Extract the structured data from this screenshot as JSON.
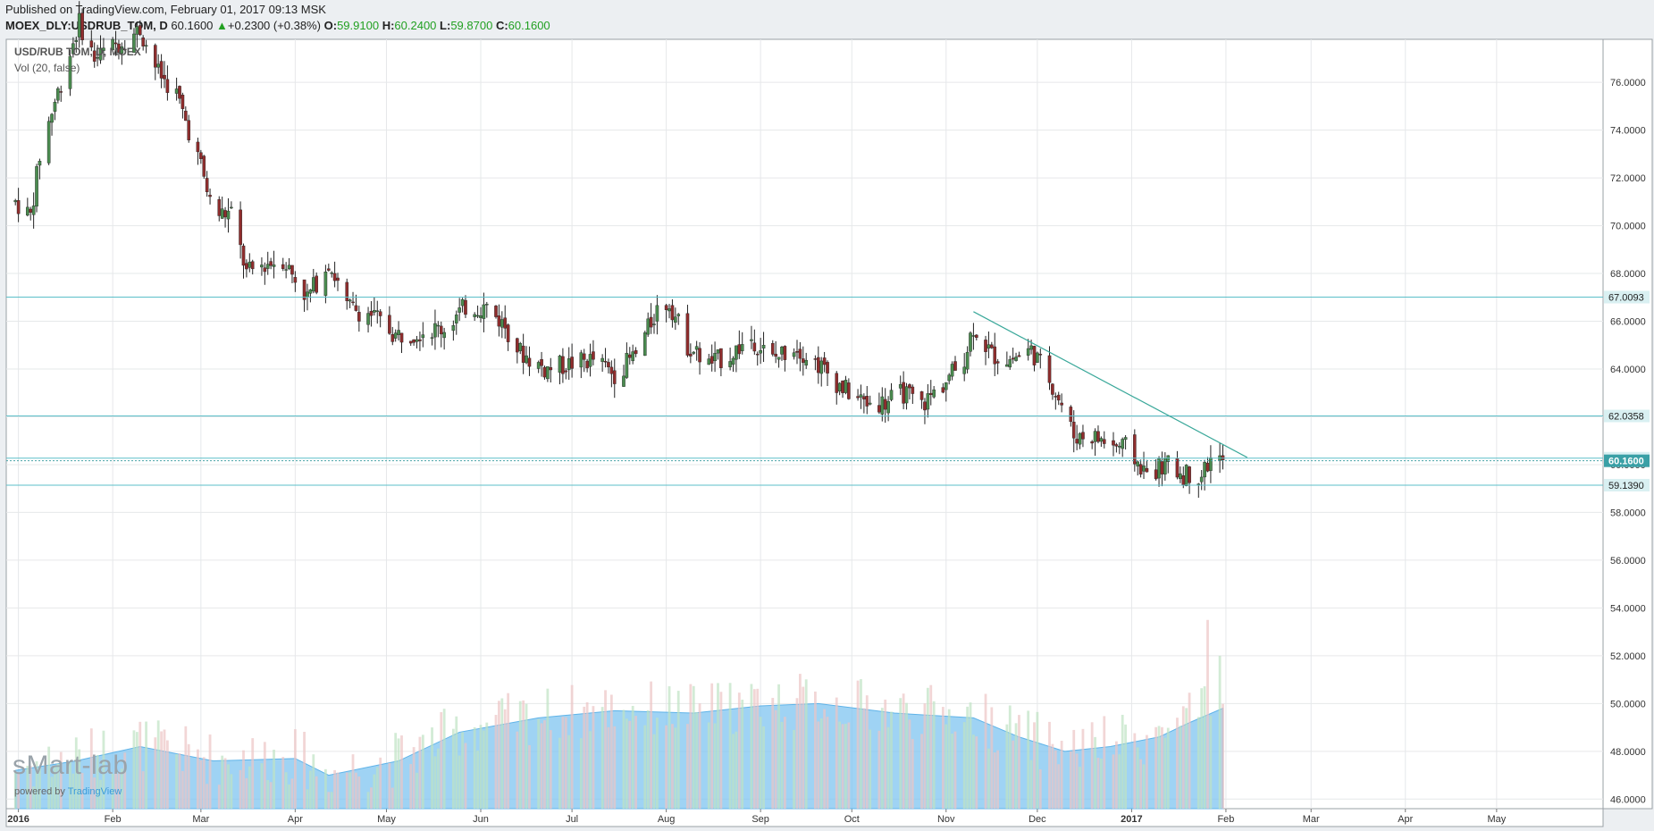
{
  "header": {
    "published": "Published on TradingView.com, February 01, 2017 09:13 MSK",
    "symbol": "MOEX_DLY:USDRUB_TOM, D",
    "last": "60.1600",
    "change": "+0.2300 (+0.38%)",
    "o_label": "O:",
    "o_val": "59.9100",
    "h_label": "H:",
    "h_val": "60.2400",
    "l_label": "L:",
    "l_val": "59.8700",
    "c_label": "C:",
    "c_val": "60.1600"
  },
  "pane": {
    "title": "USD/RUB TOM, D, MOEX",
    "indicator": "Vol (20, false)"
  },
  "watermark": {
    "brand": "sMart-lab",
    "powered": "powered by",
    "powered_link": "TradingView"
  },
  "colors": {
    "up": "#4a8b4f",
    "down": "#8f2d2d",
    "hline": "#5bbfc8",
    "trend": "#3aa89a",
    "vol_up": "#bfe3c3",
    "vol_down": "#ecc4c4",
    "vol_ma": "#7fc4f0"
  },
  "chart_data": {
    "type": "candlestick",
    "symbol": "USD/RUB TOM",
    "ylim": [
      45.6,
      77.8
    ],
    "y_ticks": [
      46,
      48,
      50,
      52,
      54,
      56,
      58,
      60,
      62,
      64,
      66,
      68,
      70,
      72,
      74,
      76
    ],
    "x_tick_labels": [
      "2016",
      "Feb",
      "Mar",
      "Apr",
      "May",
      "Jun",
      "Jul",
      "Aug",
      "Sep",
      "Oct",
      "Nov",
      "Dec",
      "2017",
      "Feb",
      "Mar",
      "Apr",
      "May"
    ],
    "x_ticks": [
      "2016-01-01",
      "2016-02-01",
      "2016-03-01",
      "2016-04-01",
      "2016-05-01",
      "2016-06-01",
      "2016-07-01",
      "2016-08-01",
      "2016-09-01",
      "2016-10-01",
      "2016-11-01",
      "2016-12-01",
      "2017-01-01",
      "2017-02-01",
      "2017-03-01",
      "2017-04-01",
      "2017-05-01"
    ],
    "xlim": [
      "2015-12-28",
      "2017-06-05"
    ],
    "price_path": [
      [
        "2015-12-31",
        71.0
      ],
      [
        "2016-01-05",
        70.4
      ],
      [
        "2016-01-08",
        72.9
      ],
      [
        "2016-01-12",
        74.8
      ],
      [
        "2016-01-15",
        76.0
      ],
      [
        "2016-01-21",
        78.5
      ],
      [
        "2016-01-26",
        77.0
      ],
      [
        "2016-02-01",
        77.5
      ],
      [
        "2016-02-10",
        78.2
      ],
      [
        "2016-02-16",
        76.4
      ],
      [
        "2016-02-22",
        75.5
      ],
      [
        "2016-03-01",
        72.5
      ],
      [
        "2016-03-05",
        70.5
      ],
      [
        "2016-03-11",
        70.5
      ],
      [
        "2016-03-16",
        68.0
      ],
      [
        "2016-03-22",
        68.4
      ],
      [
        "2016-03-28",
        68.6
      ],
      [
        "2016-04-05",
        67.0
      ],
      [
        "2016-04-12",
        68.5
      ],
      [
        "2016-04-18",
        66.6
      ],
      [
        "2016-04-26",
        66.3
      ],
      [
        "2016-05-04",
        65.4
      ],
      [
        "2016-05-12",
        65.6
      ],
      [
        "2016-05-20",
        65.7
      ],
      [
        "2016-05-27",
        66.6
      ],
      [
        "2016-06-03",
        66.6
      ],
      [
        "2016-06-09",
        65.8
      ],
      [
        "2016-06-14",
        64.7
      ],
      [
        "2016-06-22",
        64.0
      ],
      [
        "2016-06-30",
        64.2
      ],
      [
        "2016-07-08",
        64.4
      ],
      [
        "2016-07-15",
        63.8
      ],
      [
        "2016-07-22",
        64.6
      ],
      [
        "2016-07-29",
        66.5
      ],
      [
        "2016-08-02",
        66.8
      ],
      [
        "2016-08-08",
        65.0
      ],
      [
        "2016-08-15",
        64.2
      ],
      [
        "2016-08-22",
        64.6
      ],
      [
        "2016-08-29",
        65.3
      ],
      [
        "2016-09-05",
        64.4
      ],
      [
        "2016-09-12",
        65.0
      ],
      [
        "2016-09-20",
        64.2
      ],
      [
        "2016-09-28",
        63.2
      ],
      [
        "2016-10-05",
        62.6
      ],
      [
        "2016-10-12",
        62.6
      ],
      [
        "2016-10-18",
        63.0
      ],
      [
        "2016-10-24",
        62.5
      ],
      [
        "2016-11-01",
        63.5
      ],
      [
        "2016-11-07",
        64.5
      ],
      [
        "2016-11-10",
        65.8
      ],
      [
        "2016-11-16",
        64.6
      ],
      [
        "2016-11-22",
        64.4
      ],
      [
        "2016-11-29",
        64.8
      ],
      [
        "2016-12-05",
        63.6
      ],
      [
        "2016-12-09",
        62.5
      ],
      [
        "2016-12-13",
        61.2
      ],
      [
        "2016-12-19",
        61.2
      ],
      [
        "2016-12-26",
        60.8
      ],
      [
        "2016-12-30",
        60.7
      ],
      [
        "2017-01-06",
        59.6
      ],
      [
        "2017-01-12",
        60.0
      ],
      [
        "2017-01-18",
        59.6
      ],
      [
        "2017-01-24",
        59.6
      ],
      [
        "2017-01-27",
        60.2
      ],
      [
        "2017-01-31",
        60.16
      ]
    ],
    "last_close": 60.16,
    "horizontal_levels": [
      67.0093,
      62.0358,
      60.2692,
      60.16,
      59.139
    ],
    "trend_line": {
      "from": [
        "2016-11-10",
        66.4
      ],
      "to": [
        "2017-02-08",
        60.3
      ]
    },
    "volume": {
      "indicator": "Vol (20, false)",
      "spikes": [
        [
          "2017-01-26",
          53.5
        ],
        [
          "2017-01-30",
          52.0
        ]
      ],
      "ma_path": [
        [
          "2015-12-31",
          47.2
        ],
        [
          "2016-01-20",
          47.6
        ],
        [
          "2016-02-10",
          48.2
        ],
        [
          "2016-03-05",
          47.6
        ],
        [
          "2016-04-01",
          47.7
        ],
        [
          "2016-04-12",
          47.0
        ],
        [
          "2016-05-05",
          47.6
        ],
        [
          "2016-05-25",
          48.8
        ],
        [
          "2016-06-20",
          49.4
        ],
        [
          "2016-07-15",
          49.7
        ],
        [
          "2016-08-10",
          49.6
        ],
        [
          "2016-09-01",
          49.9
        ],
        [
          "2016-09-20",
          50.0
        ],
        [
          "2016-10-15",
          49.6
        ],
        [
          "2016-11-10",
          49.4
        ],
        [
          "2016-11-25",
          48.6
        ],
        [
          "2016-12-10",
          48.0
        ],
        [
          "2016-12-25",
          48.2
        ],
        [
          "2017-01-10",
          48.6
        ],
        [
          "2017-01-20",
          49.2
        ],
        [
          "2017-01-31",
          49.8
        ]
      ]
    }
  }
}
